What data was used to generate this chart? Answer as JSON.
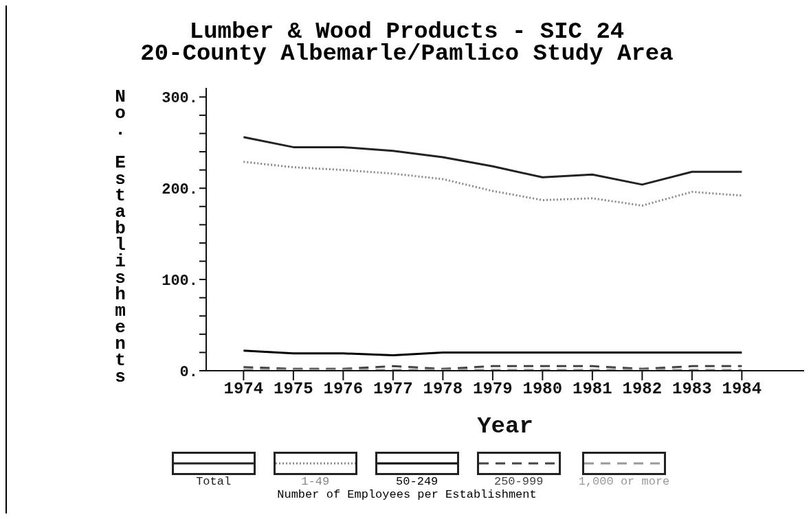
{
  "chart_data": {
    "type": "line",
    "title": "Lumber & Wood Products - SIC 24",
    "subtitle": "20-County Albemarle/Pamlico Study Area",
    "xlabel": "Year",
    "ylabel": "No. Establishments",
    "legend_title": "Number of Employees per Establishment",
    "legend": "bottom",
    "grid": false,
    "marker": "none",
    "x": [
      1974,
      1975,
      1976,
      1977,
      1978,
      1979,
      1980,
      1981,
      1982,
      1983,
      1984
    ],
    "xlim": [
      1973.25,
      1985.25
    ],
    "xticks": [
      1974,
      1975,
      1976,
      1977,
      1978,
      1979,
      1980,
      1981,
      1982,
      1983,
      1984
    ],
    "ylim": [
      0,
      310
    ],
    "yticks": [
      {
        "value": 0,
        "label": "0."
      },
      {
        "value": 20,
        "label": null
      },
      {
        "value": 40,
        "label": null
      },
      {
        "value": 60,
        "label": null
      },
      {
        "value": 80,
        "label": null
      },
      {
        "value": 100,
        "label": "100."
      },
      {
        "value": 120,
        "label": null
      },
      {
        "value": 140,
        "label": null
      },
      {
        "value": 160,
        "label": null
      },
      {
        "value": 180,
        "label": null
      },
      {
        "value": 200,
        "label": "200."
      },
      {
        "value": 220,
        "label": null
      },
      {
        "value": 240,
        "label": null
      },
      {
        "value": 260,
        "label": null
      },
      {
        "value": 280,
        "label": null
      },
      {
        "value": 300,
        "label": "300."
      }
    ],
    "series": [
      {
        "name": "Total",
        "color": "#222222",
        "line_style": "solid",
        "values": [
          256,
          245,
          245,
          241,
          234,
          224,
          212,
          215,
          204,
          218,
          218
        ]
      },
      {
        "name": "1-49",
        "color": "#888888",
        "line_style": "dotted",
        "values": [
          229,
          223,
          220,
          216,
          210,
          197,
          187,
          189,
          181,
          196,
          192
        ]
      },
      {
        "name": "50-249",
        "color": "#000000",
        "line_style": "solid",
        "values": [
          22,
          19,
          19,
          17,
          20,
          20,
          20,
          20,
          20,
          20,
          20
        ]
      },
      {
        "name": "250-999",
        "color": "#444444",
        "line_style": "dashed",
        "values": [
          4,
          2,
          2,
          5,
          2,
          5,
          5,
          5,
          2,
          5,
          5
        ]
      },
      {
        "name": "1,000 or more",
        "color": "#999999",
        "line_style": "dashed",
        "values": [
          1,
          1,
          1,
          1,
          1,
          1,
          1,
          1,
          1,
          1,
          1
        ]
      }
    ]
  }
}
